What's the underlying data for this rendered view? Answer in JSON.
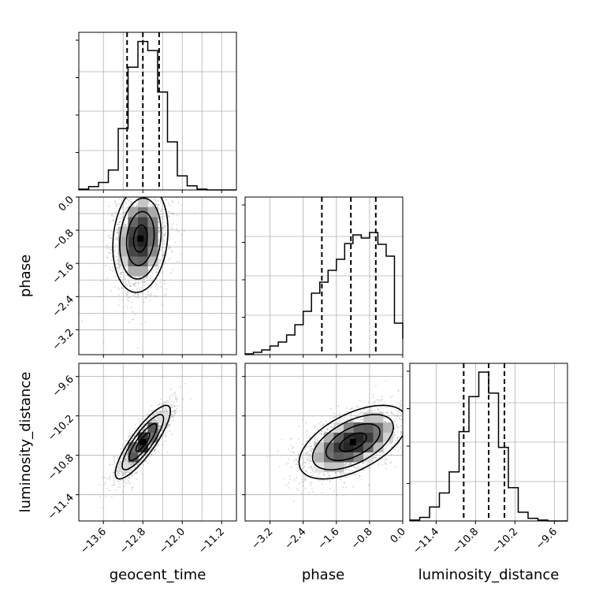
{
  "chart_data": {
    "type": "corner",
    "title": "",
    "parameters": [
      "geocent_time",
      "phase",
      "luminosity_distance"
    ],
    "grid": true,
    "quantiles_shown": true,
    "panels": [
      {
        "kind": "histogram",
        "parameter": "geocent_time",
        "range": [
          -14.1,
          -10.9
        ],
        "quantiles": [
          -13.12,
          -12.8,
          -12.47
        ],
        "bins": [
          -14.1,
          -13.9,
          -13.7,
          -13.5,
          -13.3,
          -13.1,
          -12.9,
          -12.7,
          -12.5,
          -12.3,
          -12.1,
          -11.9,
          -11.7,
          -11.5,
          -11.3,
          -11.1,
          -10.9
        ],
        "counts": [
          1,
          4,
          9,
          24,
          74,
          148,
          179,
          168,
          118,
          58,
          17,
          5,
          1,
          0,
          0,
          0
        ],
        "ylim": [
          0,
          190
        ],
        "xticks": [
          -13.6,
          -12.8,
          -12.0,
          -11.2
        ],
        "xtick_labels": [
          "−13.6",
          "−12.8",
          "−12.0",
          "−11.2"
        ]
      },
      {
        "kind": "2d",
        "x_parameter": "geocent_time",
        "y_parameter": "phase",
        "xlim": [
          -14.1,
          -10.9
        ],
        "ylim": [
          -3.8,
          0.0
        ],
        "yticks": [
          0.0,
          -0.8,
          -1.6,
          -2.4,
          -3.2
        ],
        "ytick_labels": [
          "0.0",
          "−0.8",
          "−1.6",
          "−2.4",
          "−3.2"
        ],
        "center": [
          -12.85,
          -1.0
        ],
        "sigma": [
          0.28,
          0.65
        ],
        "correlation": 0.15,
        "contour_levels": [
          0.5,
          1.0,
          1.5,
          2.0
        ],
        "n_samples": 1800
      },
      {
        "kind": "histogram",
        "parameter": "phase",
        "range": [
          -3.8,
          0.0
        ],
        "quantiles": [
          -1.95,
          -1.25,
          -0.65
        ],
        "bins": [
          -3.8,
          -3.6,
          -3.4,
          -3.2,
          -3.0,
          -2.8,
          -2.6,
          -2.4,
          -2.2,
          -2.0,
          -1.8,
          -1.6,
          -1.4,
          -1.2,
          -1.0,
          -0.8,
          -0.6,
          -0.4,
          -0.2,
          0.0
        ],
        "counts": [
          1,
          3,
          6,
          11,
          16,
          25,
          38,
          55,
          78,
          92,
          107,
          121,
          141,
          152,
          148,
          155,
          140,
          125,
          40,
          20
        ],
        "ylim": [
          0,
          200
        ],
        "xticks": [
          -3.2,
          -2.4,
          -1.6,
          -0.8,
          0.0
        ],
        "xtick_labels": [
          "−3.2",
          "−2.4",
          "−1.6",
          "−0.8",
          "0.0"
        ]
      },
      {
        "kind": "2d",
        "x_parameter": "geocent_time",
        "y_parameter": "luminosity_distance",
        "xlim": [
          -14.1,
          -10.9
        ],
        "ylim": [
          -11.8,
          -9.4
        ],
        "yticks": [
          -9.6,
          -10.2,
          -10.8,
          -11.4
        ],
        "ytick_labels": [
          "−9.6",
          "−10.2",
          "−10.8",
          "−11.4"
        ],
        "center": [
          -12.8,
          -10.6
        ],
        "sigma": [
          0.28,
          0.28
        ],
        "correlation": 0.85,
        "contour_levels": [
          0.5,
          1.0,
          1.5,
          2.0
        ],
        "n_samples": 1800
      },
      {
        "kind": "2d",
        "x_parameter": "phase",
        "y_parameter": "luminosity_distance",
        "xlim": [
          -3.8,
          0.0
        ],
        "ylim": [
          -11.8,
          -9.4
        ],
        "center": [
          -1.2,
          -10.6
        ],
        "sigma": [
          0.65,
          0.28
        ],
        "correlation": 0.55,
        "contour_levels": [
          0.5,
          1.0,
          1.5,
          2.0
        ],
        "n_samples": 1800
      },
      {
        "kind": "histogram",
        "parameter": "luminosity_distance",
        "range": [
          -11.8,
          -9.4
        ],
        "quantiles": [
          -10.98,
          -10.6,
          -10.36
        ],
        "bins": [
          -11.8,
          -11.65,
          -11.5,
          -11.35,
          -11.2,
          -11.05,
          -10.9,
          -10.75,
          -10.6,
          -10.45,
          -10.3,
          -10.15,
          -10.0,
          -9.85,
          -9.7,
          -9.55,
          -9.4
        ],
        "counts": [
          1,
          4,
          16,
          32,
          56,
          102,
          142,
          170,
          146,
          84,
          38,
          10,
          3,
          1,
          0,
          0
        ],
        "ylim": [
          0,
          180
        ],
        "xticks": [
          -11.4,
          -10.8,
          -10.2,
          -9.6
        ],
        "xtick_labels": [
          "−11.4",
          "−10.8",
          "−10.2",
          "−9.6"
        ]
      }
    ],
    "axis_labels": {
      "x": [
        "geocent_time",
        "phase",
        "luminosity_distance"
      ],
      "y": [
        "phase",
        "luminosity_distance"
      ]
    }
  }
}
